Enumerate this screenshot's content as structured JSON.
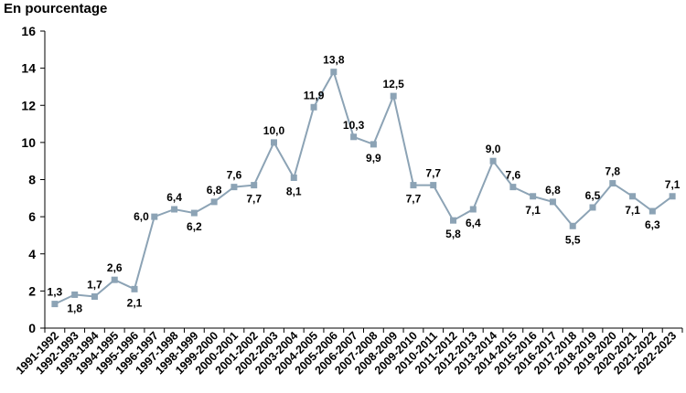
{
  "chart_data": {
    "type": "line",
    "ylabel": "En pourcentage",
    "ylim": [
      0,
      16
    ],
    "yticks": [
      "0",
      "2",
      "4",
      "6",
      "8",
      "10",
      "12",
      "14",
      "16"
    ],
    "categories": [
      "1991-1992",
      "1992-1993",
      "1993-1994",
      "1994-1995",
      "1995-1996",
      "1996-1997",
      "1997-1998",
      "1998-1999",
      "1999-2000",
      "2000-2001",
      "2001-2002",
      "2002-2003",
      "2003-2004",
      "2004-2005",
      "2005-2006",
      "2006-2007",
      "2007-2008",
      "2008-2009",
      "2009-2010",
      "2010-2011",
      "2011-2012",
      "2012-2013",
      "2013-2014",
      "2014-2015",
      "2015-2016",
      "2016-2017",
      "2017-2018",
      "2018-2019",
      "2019-2020",
      "2020-2021",
      "2021-2022",
      "2022-2023"
    ],
    "values": [
      1.3,
      1.8,
      1.7,
      2.6,
      2.1,
      6.0,
      6.4,
      6.2,
      6.8,
      7.6,
      7.7,
      10.0,
      8.1,
      11.9,
      13.8,
      10.3,
      9.9,
      12.5,
      7.7,
      7.7,
      5.8,
      6.4,
      9.0,
      7.6,
      7.1,
      6.8,
      5.5,
      6.5,
      7.8,
      7.1,
      6.3,
      7.1
    ],
    "data_labels": [
      "1,3",
      "1,8",
      "1,7",
      "2,6",
      "2,1",
      "6,0",
      "6,4",
      "6,2",
      "6,8",
      "7,6",
      "7,7",
      "10,0",
      "8,1",
      "11,9",
      "13,8",
      "10,3",
      "9,9",
      "12,5",
      "7,7",
      "7,7",
      "5,8",
      "6,4",
      "9,0",
      "7,6",
      "7,1",
      "6,8",
      "5,5",
      "6,5",
      "7,8",
      "7,1",
      "6,3",
      "7,1"
    ],
    "label_side": [
      "above",
      "below",
      "above",
      "above",
      "below",
      "left",
      "above",
      "below",
      "above",
      "above",
      "below",
      "above",
      "below",
      "above",
      "above",
      "above",
      "below",
      "above",
      "below",
      "above",
      "below",
      "below",
      "above",
      "above",
      "below",
      "above",
      "below",
      "above",
      "above",
      "below",
      "below",
      "above"
    ],
    "line_color": "#8ca3b5",
    "marker_color": "#8ca3b5"
  }
}
